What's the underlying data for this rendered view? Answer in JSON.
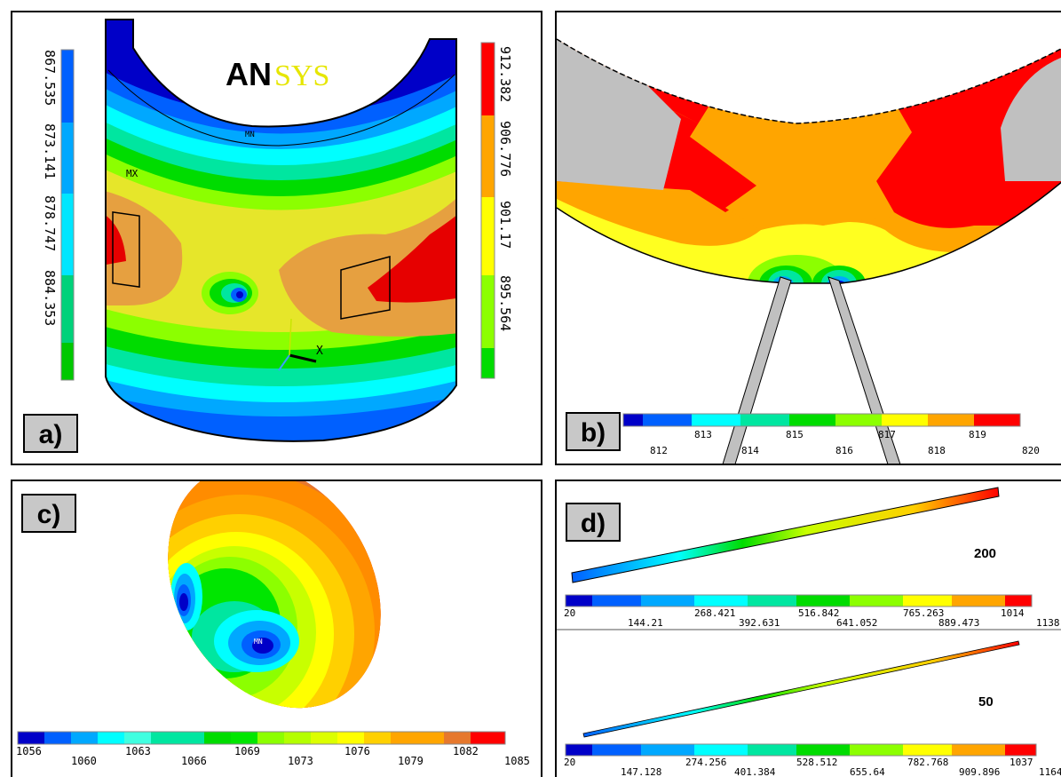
{
  "colors": {
    "c0": "#0000c8",
    "c1": "#0060ff",
    "c2": "#00a8ff",
    "c3": "#00ffff",
    "c4": "#00e6a0",
    "c5": "#00dc00",
    "c6": "#8cff00",
    "c7": "#ffff00",
    "c8": "#ffa500",
    "c9": "#e6782d",
    "c10": "#ff0000",
    "grey": "#c0c0c0"
  },
  "panels": {
    "a": {
      "label": "a)",
      "logo_black": "AN",
      "logo_yellow": "SYS",
      "marker_mx": "MX",
      "marker_mn": "MN",
      "axis_x": "X",
      "left_scale": [
        "867.535",
        "873.141",
        "878.747",
        "884.353"
      ],
      "right_scale": [
        "912.382",
        "906.776",
        "901.17",
        "895.564"
      ]
    },
    "b": {
      "label": "b)",
      "scale_top": [
        "813",
        "815",
        "817",
        "819"
      ],
      "scale_bottom": [
        "812",
        "814",
        "816",
        "818",
        "820"
      ]
    },
    "c": {
      "label": "c)",
      "marker_mn": "MN",
      "scale_bottom": [
        "1056",
        "1066",
        "1073",
        "1079",
        "1085"
      ],
      "scale_top": [
        "1060",
        "1063",
        "1069",
        "1076",
        "1082"
      ]
    },
    "d": {
      "label": "d)",
      "upper": {
        "title": "200",
        "scale_top": [
          "20",
          "268.421",
          "516.842",
          "765.263",
          "1014"
        ],
        "scale_bottom": [
          "144.21",
          "392.631",
          "641.052",
          "889.473",
          "1138"
        ]
      },
      "lower": {
        "title": "50",
        "scale_top": [
          "20",
          "274.256",
          "528.512",
          "782.768",
          "1037"
        ],
        "scale_bottom": [
          "147.128",
          "401.384",
          "655.64",
          "909.896",
          "1164"
        ]
      }
    }
  }
}
